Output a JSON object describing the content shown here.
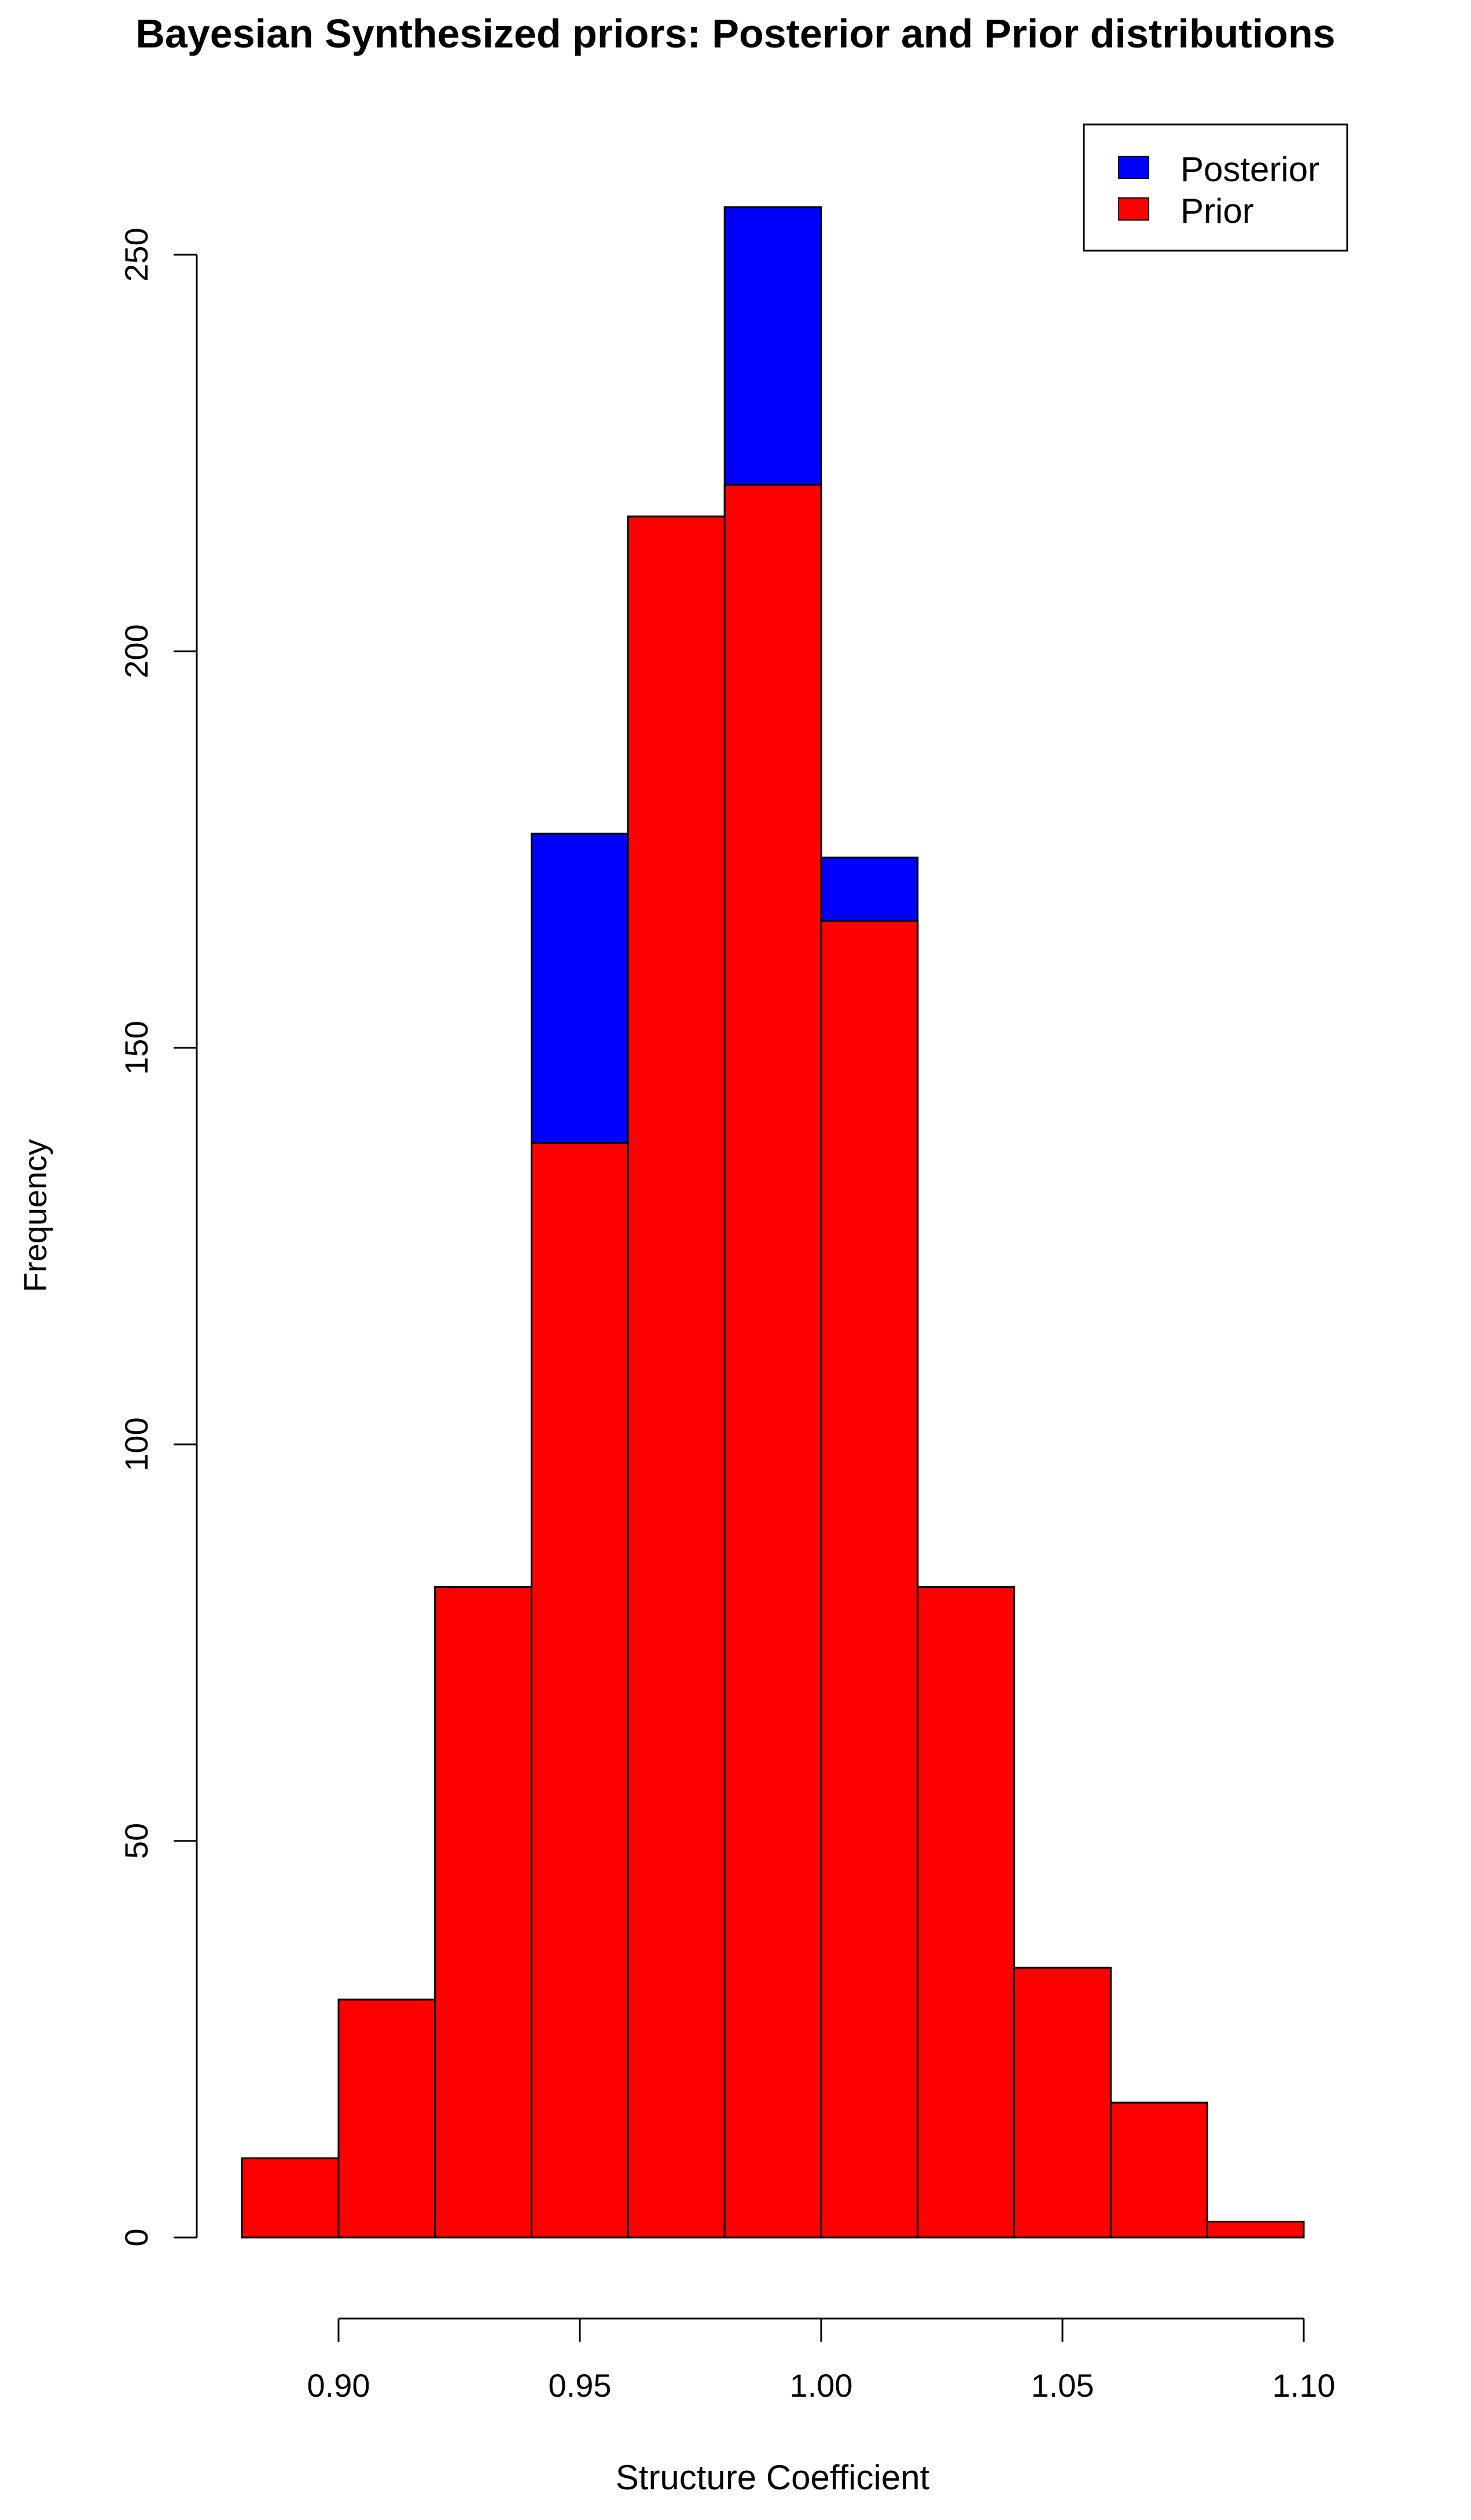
{
  "chart_data": {
    "type": "bar",
    "title": "Bayesian Synthesized priors: Posterior and Prior distributions",
    "xlabel": "Structure Coefficient",
    "ylabel": "Frequency",
    "xlim": [
      0.88,
      1.1
    ],
    "ylim": [
      0,
      250
    ],
    "x_ticks": [
      "0.90",
      "0.95",
      "1.00",
      "1.05",
      "1.10"
    ],
    "y_ticks": [
      "0",
      "50",
      "100",
      "150",
      "200",
      "250"
    ],
    "legend_position": "top-right",
    "colors": {
      "posterior": "#0000ff",
      "prior": "#ff0000",
      "outline": "#000000"
    },
    "bin_edges": [
      0.88,
      0.9,
      0.92,
      0.94,
      0.96,
      0.98,
      1.0,
      1.02,
      1.04,
      1.06,
      1.08,
      1.1
    ],
    "series": [
      {
        "name": "Posterior",
        "values": [
          10,
          30,
          82,
          177,
          217,
          256,
          174,
          82,
          34,
          17,
          2
        ]
      },
      {
        "name": "Prior",
        "values": [
          10,
          30,
          82,
          138,
          217,
          221,
          166,
          82,
          34,
          17,
          2
        ]
      }
    ]
  }
}
